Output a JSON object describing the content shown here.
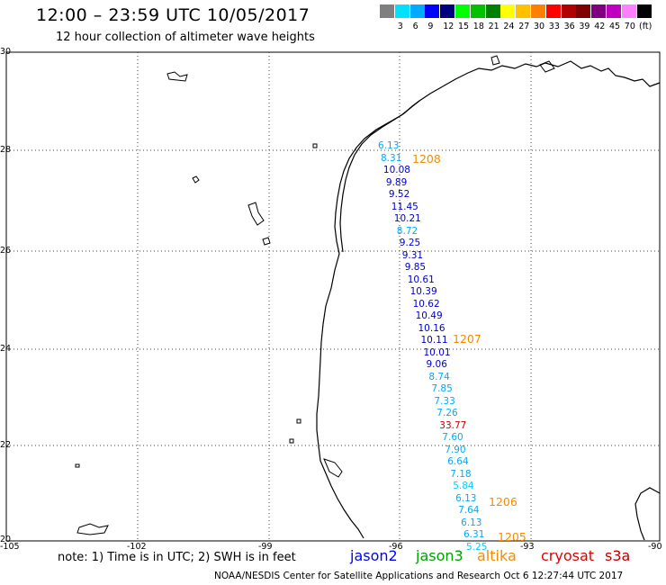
{
  "header": {
    "title": "12:00 – 23:59 UTC 10/05/2017",
    "subtitle": "12 hour collection of altimeter wave heights"
  },
  "legend": {
    "unit": "(ft)",
    "swatches": [
      {
        "color": "#7f7f7f",
        "label": ""
      },
      {
        "color": "#00e0ff",
        "label": "3"
      },
      {
        "color": "#00aaff",
        "label": "6"
      },
      {
        "color": "#0000ff",
        "label": "9"
      },
      {
        "color": "#00007f",
        "label": "12"
      },
      {
        "color": "#00ff00",
        "label": "15"
      },
      {
        "color": "#00c000",
        "label": "18"
      },
      {
        "color": "#007f00",
        "label": "21"
      },
      {
        "color": "#ffff00",
        "label": "24"
      },
      {
        "color": "#ffc000",
        "label": "27"
      },
      {
        "color": "#ff7f00",
        "label": "30"
      },
      {
        "color": "#ff0000",
        "label": "33"
      },
      {
        "color": "#b00000",
        "label": "36"
      },
      {
        "color": "#7f0000",
        "label": "39"
      },
      {
        "color": "#7f007f",
        "label": "42"
      },
      {
        "color": "#c000c0",
        "label": "45"
      },
      {
        "color": "#ff80ff",
        "label": "70"
      },
      {
        "color": "#000000",
        "label": ""
      }
    ]
  },
  "axes": {
    "lat_labels": [
      "30",
      "28",
      "26",
      "24",
      "22",
      "20"
    ],
    "lon_labels": [
      "-105",
      "-102",
      "-99",
      "-96",
      "-93",
      "-90"
    ]
  },
  "observations": [
    {
      "value": "6.13",
      "color": "#00aaff"
    },
    {
      "value": "8.31",
      "color": "#00aaff"
    },
    {
      "value": "10.08",
      "color": "#0000cc"
    },
    {
      "value": "9.89",
      "color": "#0000cc"
    },
    {
      "value": "9.52",
      "color": "#0000cc"
    },
    {
      "value": "11.45",
      "color": "#0000cc"
    },
    {
      "value": "10.21",
      "color": "#0000cc"
    },
    {
      "value": "8.72",
      "color": "#00aaff"
    },
    {
      "value": "9.25",
      "color": "#0000cc"
    },
    {
      "value": "9.31",
      "color": "#0000cc"
    },
    {
      "value": "9.85",
      "color": "#0000cc"
    },
    {
      "value": "10.61",
      "color": "#0000cc"
    },
    {
      "value": "10.39",
      "color": "#0000cc"
    },
    {
      "value": "10.62",
      "color": "#0000cc"
    },
    {
      "value": "10.49",
      "color": "#0000cc"
    },
    {
      "value": "10.16",
      "color": "#0000cc"
    },
    {
      "value": "10.11",
      "color": "#0000cc"
    },
    {
      "value": "10.01",
      "color": "#0000cc"
    },
    {
      "value": "9.06",
      "color": "#0000cc"
    },
    {
      "value": "8.74",
      "color": "#00aaff"
    },
    {
      "value": "7.85",
      "color": "#00aaff"
    },
    {
      "value": "7.33",
      "color": "#00aaff"
    },
    {
      "value": "7.26",
      "color": "#00aaff"
    },
    {
      "value": "33.77",
      "color": "#cc0000"
    },
    {
      "value": "7.60",
      "color": "#00aaff"
    },
    {
      "value": "7.90",
      "color": "#00aaff"
    },
    {
      "value": "6.64",
      "color": "#00aaff"
    },
    {
      "value": "7.18",
      "color": "#00aaff"
    },
    {
      "value": "5.84",
      "color": "#00ccff"
    },
    {
      "value": "6.13",
      "color": "#00aaff"
    },
    {
      "value": "7.64",
      "color": "#00aaff"
    },
    {
      "value": "6.13",
      "color": "#00aaff"
    },
    {
      "value": "6.31",
      "color": "#00aaff"
    },
    {
      "value": "5.25",
      "color": "#00ccff"
    }
  ],
  "pass_times": [
    "1208",
    "1207",
    "1206",
    "1205"
  ],
  "footer": {
    "note": "note:  1) Time is in UTC;  2) SWH is in feet",
    "satellites": [
      {
        "name": "jason2",
        "color": "#0000ff"
      },
      {
        "name": "jason3",
        "color": "#00a000"
      },
      {
        "name": "altika",
        "color": "#f28c00"
      },
      {
        "name": "cryosat",
        "color": "#e00000"
      },
      {
        "name": "s3a",
        "color": "#c00000"
      }
    ],
    "credit": "NOAA/NESDIS Center for Satellite Applications and Research    Oct  6 12:27:44 UTC 2017"
  }
}
